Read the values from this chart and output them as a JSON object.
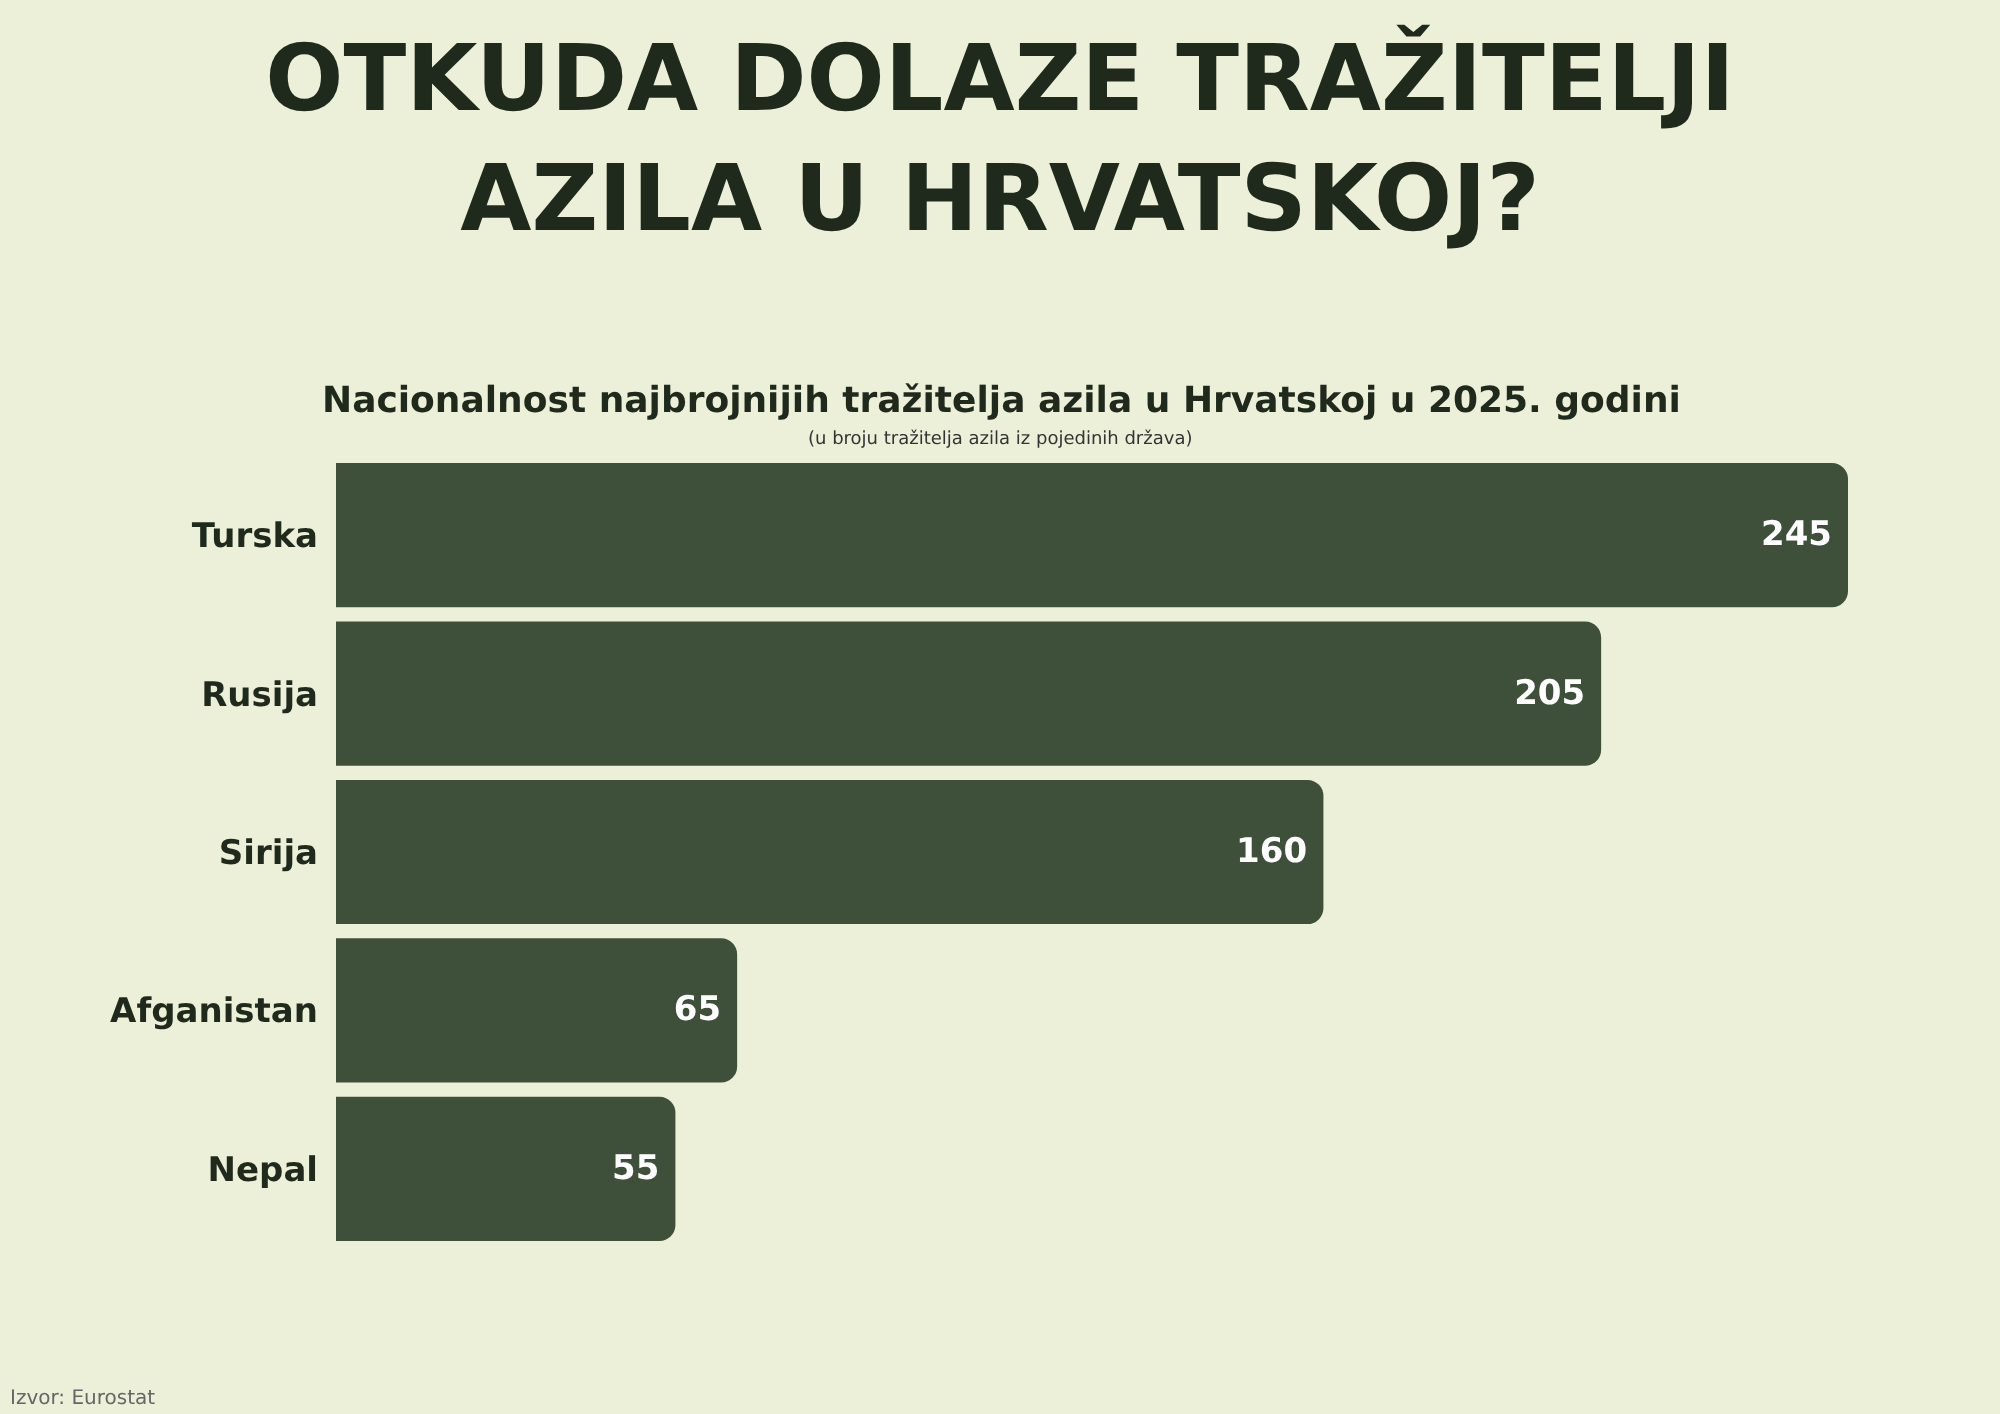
{
  "chart_data": {
    "type": "bar",
    "orientation": "horizontal",
    "title": "OTKUDA DOLAZE TRAŽITELJI AZILA U HRVATSKOJ?",
    "subtitle": "Nacionalnost najbrojnijih tražitelja azila u Hrvatskoj u 2025. godini",
    "annotations": [
      "(u broju tražitelja azila iz pojedinih država)",
      "Izvor: Eurostat"
    ],
    "categories": [
      "Turska",
      "Rusija",
      "Sirija",
      "Afganistan",
      "Nepal"
    ],
    "values": [
      245,
      205,
      160,
      65,
      55
    ],
    "color": "#3e4f3a",
    "data_labels": true,
    "tick_labels": "y"
  }
}
